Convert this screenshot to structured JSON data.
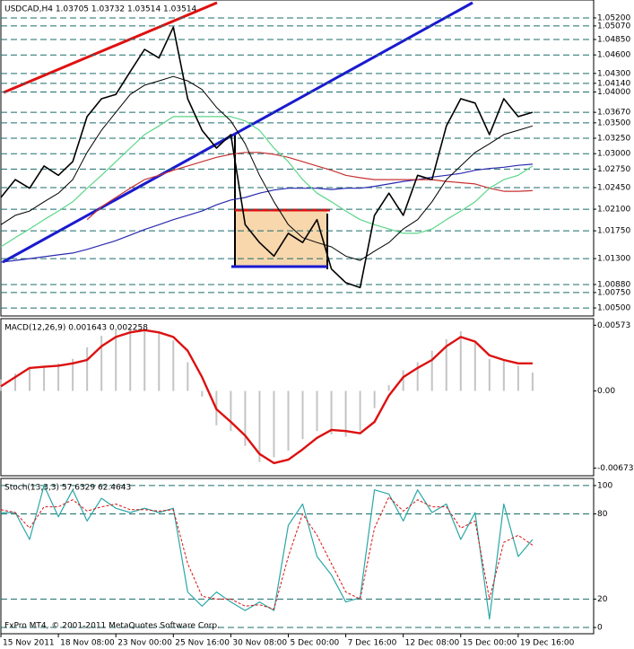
{
  "chart_data": [
    {
      "type": "line",
      "title": "USDCAD,H4  1.03705 1.03732 1.03514 1.03514",
      "x": [
        0,
        4,
        8,
        12,
        16,
        20,
        24,
        28,
        32,
        36,
        40,
        44,
        48,
        52,
        56,
        60,
        64,
        68,
        72,
        76,
        80,
        84,
        88,
        92,
        96,
        100,
        104,
        108,
        112,
        116,
        120,
        124,
        128,
        132,
        136,
        140,
        144,
        148
      ],
      "xlim": [
        0,
        165
      ],
      "ylim": [
        1.0037,
        1.0549
      ],
      "grid": true,
      "yticks": [
        {
          "value": 1.052,
          "label": "1.05200"
        },
        {
          "value": 1.0507,
          "label": "1.05070"
        },
        {
          "value": 1.0485,
          "label": "1.04850"
        },
        {
          "value": 1.046,
          "label": "1.04600"
        },
        {
          "value": 1.043,
          "label": "1.04300"
        },
        {
          "value": 1.0414,
          "label": "1.04140"
        },
        {
          "value": 1.04,
          "label": "1.04000"
        },
        {
          "value": 1.0367,
          "label": "1.03670"
        },
        {
          "value": 1.035,
          "label": "1.03500"
        },
        {
          "value": 1.0325,
          "label": "1.03250"
        },
        {
          "value": 1.03,
          "label": "1.03000"
        },
        {
          "value": 1.0275,
          "label": "1.02750"
        },
        {
          "value": 1.0245,
          "label": "1.02450"
        },
        {
          "value": 1.021,
          "label": "1.02100"
        },
        {
          "value": 1.0175,
          "label": "1.01750"
        },
        {
          "value": 1.013,
          "label": "1.01300"
        },
        {
          "value": 1.0088,
          "label": "1.00880"
        },
        {
          "value": 1.0075,
          "label": "1.00750"
        },
        {
          "value": 1.005,
          "label": "1.00500"
        }
      ],
      "series": [
        {
          "color": "#2a2ab0",
          "width": 1.2,
          "values": [
            1.0124,
            1.0127,
            1.013,
            1.0133,
            1.0136,
            1.0139,
            1.0145,
            1.0152,
            1.0159,
            1.0168,
            1.0177,
            1.0185,
            1.0193,
            1.02,
            1.0207,
            1.0217,
            1.0225,
            1.0229,
            1.0236,
            1.0241,
            1.0244,
            1.0244,
            1.0244,
            1.0242,
            1.0244,
            1.0244,
            1.0247,
            1.0251,
            1.0255,
            1.0258,
            1.0262,
            1.0265,
            1.0268,
            1.0273,
            1.0276,
            1.0278,
            1.0281,
            1.0283
          ]
        },
        {
          "color": "#c83232",
          "width": 1.2,
          "values": [
            null,
            null,
            null,
            null,
            null,
            null,
            1.0193,
            1.0214,
            1.0229,
            1.0244,
            1.0258,
            1.0265,
            1.0273,
            1.028,
            1.0287,
            1.0294,
            1.0299,
            1.0302,
            1.0302,
            1.0299,
            1.0294,
            1.0287,
            1.028,
            1.0273,
            1.0265,
            1.0261,
            1.0258,
            1.0258,
            1.0258,
            1.0258,
            1.0258,
            1.0255,
            1.0253,
            1.0251,
            1.0244,
            1.0239,
            1.0239,
            1.024
          ]
        },
        {
          "color": "#5cd68a",
          "width": 1.2,
          "values": [
            1.0149,
            1.0164,
            1.0178,
            1.0193,
            1.0207,
            1.0222,
            1.0244,
            1.0265,
            1.0287,
            1.0309,
            1.0331,
            1.0345,
            1.036,
            1.036,
            1.036,
            1.036,
            1.036,
            1.0353,
            1.0338,
            1.0309,
            1.0287,
            1.0258,
            1.0236,
            1.0222,
            1.0207,
            1.0193,
            1.0185,
            1.0178,
            1.0171,
            1.0171,
            1.0178,
            1.0193,
            1.0207,
            1.0222,
            1.0244,
            1.0258,
            1.0265,
            1.028
          ]
        },
        {
          "color": "#000000",
          "width": 1,
          "values": [
            1.0185,
            1.02,
            1.0207,
            1.0222,
            1.0236,
            1.0258,
            1.0302,
            1.0338,
            1.0367,
            1.0396,
            1.0411,
            1.0418,
            1.0425,
            1.0418,
            1.0404,
            1.0375,
            1.0353,
            1.0316,
            1.0265,
            1.0222,
            1.0185,
            1.0164,
            1.0156,
            1.0149,
            1.0134,
            1.0127,
            1.0142,
            1.0156,
            1.0178,
            1.0193,
            1.0222,
            1.0258,
            1.028,
            1.0302,
            1.0316,
            1.0331,
            1.0338,
            1.0345
          ]
        },
        {
          "color": "#000000",
          "width": 1.6,
          "values": [
            1.0229,
            1.0258,
            1.0244,
            1.028,
            1.0265,
            1.0287,
            1.036,
            1.0389,
            1.0396,
            1.0433,
            1.0469,
            1.0455,
            1.0505,
            1.0389,
            1.0338,
            1.0309,
            1.0331,
            1.0185,
            1.0156,
            1.0134,
            1.0171,
            1.0156,
            1.0193,
            1.0113,
            1.0091,
            1.0083,
            1.02,
            1.0236,
            1.02,
            1.0265,
            1.0258,
            1.0345,
            1.0389,
            1.0382,
            1.0331,
            1.0389,
            1.036,
            1.0367
          ]
        }
      ]
    },
    {
      "type": "combo",
      "title": "MACD(12,26,9) 0.001643 0.002258",
      "x": [
        0,
        4,
        8,
        12,
        16,
        20,
        24,
        28,
        32,
        36,
        40,
        44,
        48,
        52,
        56,
        60,
        64,
        68,
        72,
        76,
        80,
        84,
        88,
        92,
        96,
        100,
        104,
        108,
        112,
        116,
        120,
        124,
        128,
        132,
        136,
        140,
        144,
        148
      ],
      "xlim": [
        0,
        165
      ],
      "ylim": [
        -0.0074,
        0.0063
      ],
      "grid": false,
      "yticks": [
        0.00573,
        {
          "value": 0,
          "label": "0.00"
        },
        -0.00673
      ],
      "series": [
        {
          "kind": "bar",
          "color": "#c4c4c4",
          "values": [
            0.001,
            0.0015,
            0.002,
            0.0022,
            0.0024,
            0.0028,
            0.0038,
            0.0048,
            0.0053,
            0.0055,
            0.0053,
            0.005,
            0.0044,
            0.0025,
            -0.0005,
            -0.003,
            -0.0035,
            -0.0048,
            -0.0062,
            -0.0058,
            -0.0052,
            -0.0042,
            -0.0035,
            -0.0038,
            -0.004,
            -0.0035,
            -0.0015,
            0.0005,
            0.0018,
            0.0025,
            0.0035,
            0.0045,
            0.0052,
            0.0042,
            0.0028,
            0.0026,
            0.0022,
            0.0016
          ]
        },
        {
          "kind": "line",
          "color": "#dd1111",
          "width": 2.4,
          "values": [
            0.0004,
            0.0012,
            0.002,
            0.0021,
            0.0022,
            0.0024,
            0.0027,
            0.0039,
            0.0047,
            0.0051,
            0.0053,
            0.0051,
            0.0047,
            0.0035,
            0.0012,
            -0.0016,
            -0.0027,
            -0.0039,
            -0.0055,
            -0.0063,
            -0.006,
            -0.0051,
            -0.0041,
            -0.0034,
            -0.0035,
            -0.0037,
            -0.0027,
            -0.0004,
            0.0012,
            0.002,
            0.0027,
            0.0039,
            0.0047,
            0.0043,
            0.0031,
            0.0027,
            0.0024,
            0.0024
          ]
        }
      ]
    },
    {
      "type": "line",
      "title": "Stoch(13,3,3) 57.6329 62.4643",
      "annotation": "FxPro MT4, © 2001-2011 MetaQuotes Software Corp.",
      "x": [
        0,
        4,
        8,
        12,
        16,
        20,
        24,
        28,
        32,
        36,
        40,
        44,
        48,
        52,
        56,
        60,
        64,
        68,
        72,
        76,
        80,
        84,
        88,
        92,
        96,
        100,
        104,
        108,
        112,
        116,
        120,
        124,
        128,
        132,
        136,
        140,
        144,
        148
      ],
      "xlim": [
        0,
        165
      ],
      "ylim": [
        -4.4,
        105
      ],
      "grid": true,
      "yticks": [
        100,
        80,
        20,
        0
      ],
      "xticks": [
        {
          "value": 0,
          "label": "15 Nov 2011"
        },
        {
          "value": 16,
          "label": "18 Nov 08:00"
        },
        {
          "value": 32,
          "label": "23 Nov 00:00"
        },
        {
          "value": 48,
          "label": "25 Nov 16:00"
        },
        {
          "value": 64,
          "label": "30 Nov 08:00"
        },
        {
          "value": 80,
          "label": "5 Dec 00:00"
        },
        {
          "value": 96,
          "label": "7 Dec 16:00"
        },
        {
          "value": 112,
          "label": "12 Dec 08:00"
        },
        {
          "value": 128,
          "label": "15 Dec 00:00"
        },
        {
          "value": 144,
          "label": "19 Dec 16:00"
        }
      ],
      "series": [
        {
          "color": "#2aa6a6",
          "width": 1.2,
          "values": [
            81,
            81,
            62,
            100,
            78,
            97,
            75,
            91,
            84,
            81,
            84,
            81,
            84,
            25,
            15,
            25,
            18,
            12,
            18,
            12,
            72,
            87,
            50,
            37,
            18,
            21,
            97,
            94,
            75,
            97,
            81,
            87,
            62,
            81,
            6,
            87,
            50,
            62
          ]
        },
        {
          "color": "#dd1111",
          "width": 1,
          "dash": true,
          "values": [
            83,
            81,
            70,
            85,
            85,
            90,
            82,
            85,
            87,
            83,
            83,
            82,
            83,
            45,
            22,
            20,
            20,
            15,
            16,
            13,
            50,
            80,
            65,
            45,
            25,
            20,
            70,
            92,
            82,
            90,
            85,
            85,
            70,
            75,
            20,
            60,
            65,
            58
          ]
        }
      ]
    }
  ]
}
